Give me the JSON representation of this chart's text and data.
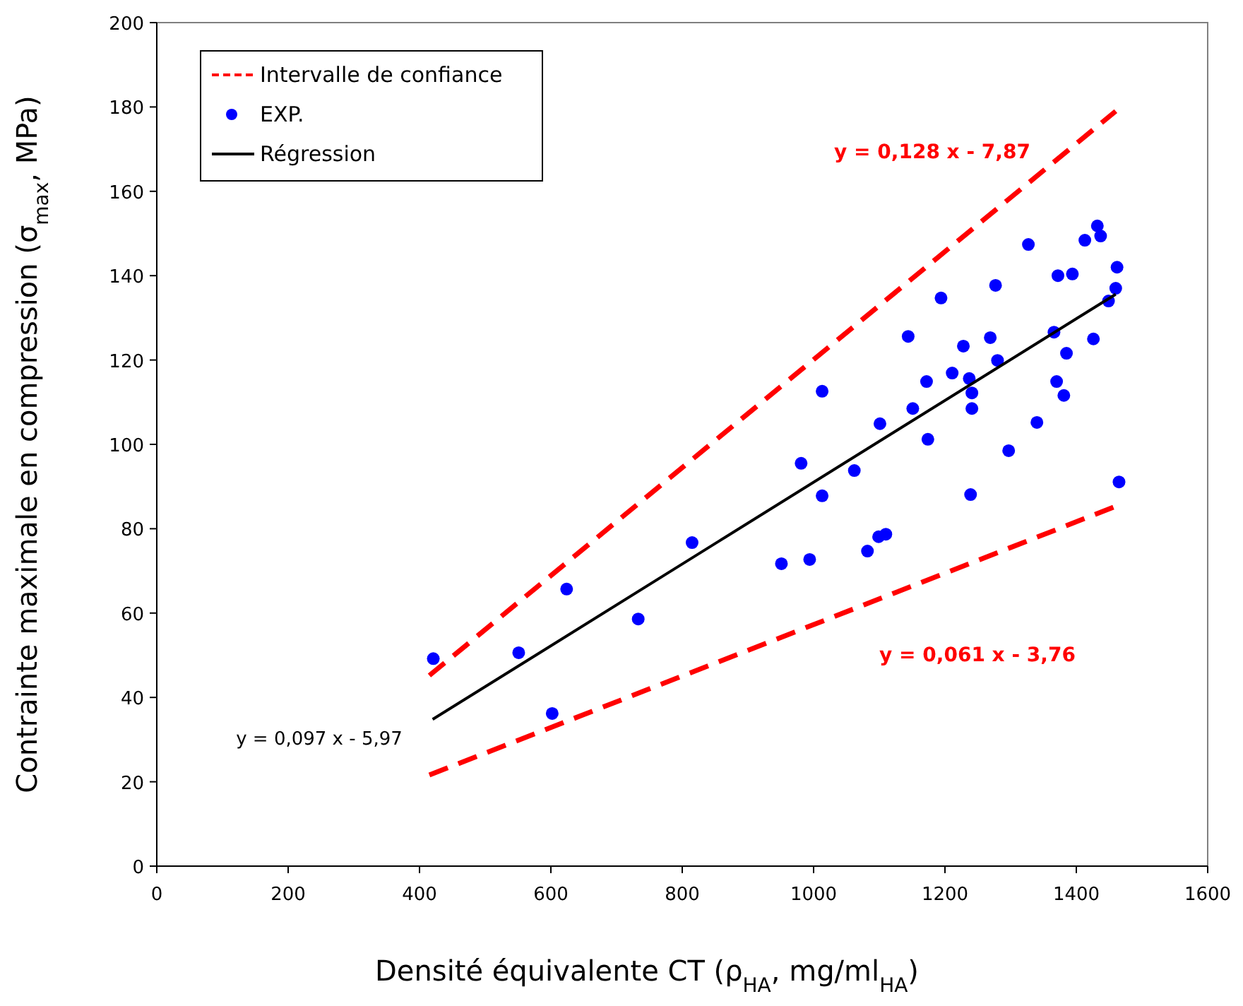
{
  "chart_data": {
    "type": "scatter",
    "xlabel": "Densité équivalente CT (ρ$_{HA}$, mg/ml$_{HA}$)",
    "ylabel": "Contrainte maximale en compression (σ$_{max}$, MPa)",
    "xlim": [
      0,
      1600
    ],
    "xticks": [
      0,
      200,
      400,
      600,
      800,
      1000,
      1200,
      1400,
      1600
    ],
    "ylim": [
      0,
      200
    ],
    "yticks": [
      0,
      20,
      40,
      60,
      80,
      100,
      120,
      140,
      160,
      180,
      200
    ],
    "grid": false,
    "legend": "top left",
    "series": [
      {
        "name": "Intervalle de confiance",
        "type": "line",
        "color": "#ff0000",
        "line_style": "dashed",
        "marker": "none",
        "x": [
          415,
          1460
        ],
        "values": [
          45.2,
          179.0
        ]
      },
      {
        "type": "line",
        "color": "#ff0000",
        "line_style": "dashed",
        "marker": "none",
        "x": [
          415,
          1460
        ],
        "values": [
          21.6,
          85.3
        ]
      },
      {
        "name": "EXP.",
        "type": "scatter",
        "color": "#0000ff",
        "marker": "circle",
        "x": [
          421,
          551,
          602,
          624,
          733,
          815,
          951,
          994,
          1013,
          1013,
          981,
          1062,
          1082,
          1099,
          1110,
          1101,
          1144,
          1151,
          1174,
          1172,
          1194,
          1211,
          1228,
          1237,
          1241,
          1241,
          1239,
          1269,
          1277,
          1280,
          1297,
          1327,
          1340,
          1366,
          1370,
          1372,
          1381,
          1385,
          1394,
          1413,
          1426,
          1432,
          1437,
          1449,
          1460,
          1462,
          1465
        ],
        "values": [
          49.2,
          50.6,
          36.2,
          65.7,
          58.6,
          76.7,
          71.7,
          72.7,
          112.6,
          87.8,
          95.5,
          93.8,
          74.7,
          78.1,
          78.7,
          104.9,
          125.6,
          108.5,
          101.2,
          114.9,
          134.7,
          116.9,
          123.3,
          115.6,
          112.2,
          108.5,
          88.1,
          125.3,
          137.7,
          119.9,
          98.5,
          147.4,
          105.2,
          126.6,
          114.9,
          140.0,
          111.6,
          121.6,
          140.4,
          148.4,
          125.0,
          151.8,
          149.4,
          134.0,
          137.0,
          142.0,
          91.1
        ]
      },
      {
        "name": "Régression",
        "type": "line",
        "color": "#000000",
        "line_style": "solid",
        "marker": "none",
        "x": [
          420,
          1460
        ],
        "values": [
          34.8,
          135.6
        ]
      }
    ],
    "annotations": [
      "y = 0,128 x - 7,87",
      "y = 0,061 x - 3,76",
      "y = 0,097 x - 5,97"
    ]
  }
}
